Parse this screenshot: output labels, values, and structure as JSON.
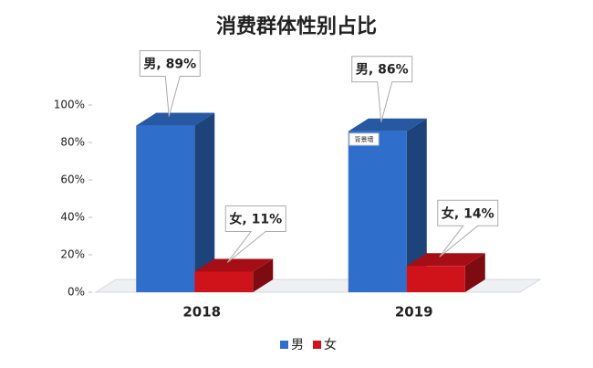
{
  "chart_data": {
    "type": "bar3d",
    "title": "消费群体性别占比",
    "categories": [
      "2018",
      "2019"
    ],
    "series": [
      {
        "name": "男",
        "color": "#2f6fcb",
        "values": [
          89,
          86
        ],
        "value_labels": [
          "男, 89%",
          "男, 86%"
        ]
      },
      {
        "name": "女",
        "color": "#d0121b",
        "values": [
          11,
          14
        ],
        "value_labels": [
          "女, 11%",
          "女, 14%"
        ]
      }
    ],
    "ylim": [
      0,
      100
    ],
    "yticks": [
      {
        "value": 0,
        "label": "0%"
      },
      {
        "value": 20,
        "label": "20%"
      },
      {
        "value": 40,
        "label": "40%"
      },
      {
        "value": 60,
        "label": "60%"
      },
      {
        "value": 80,
        "label": "80%"
      },
      {
        "value": 100,
        "label": "100%"
      }
    ],
    "annotation": "背景墙",
    "legend": "bottom"
  }
}
